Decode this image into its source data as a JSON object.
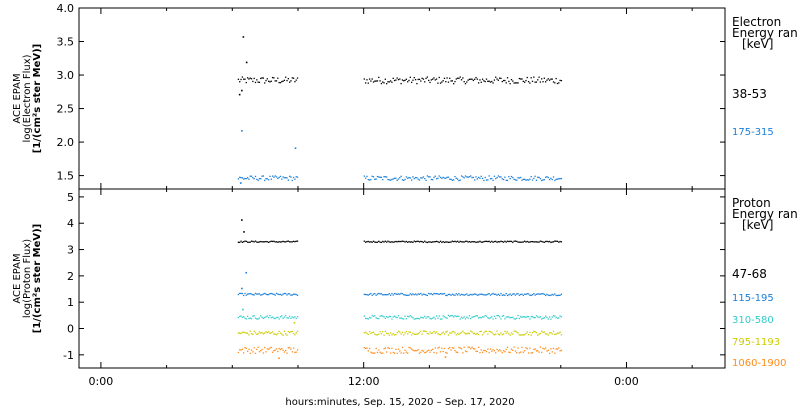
{
  "xlabel": "hours:minutes, Sep. 15, 2020 – Sep. 17, 2020",
  "chart_data": [
    {
      "type": "scatter",
      "ylabel_lines": [
        "ACE EPAM",
        "log(Electron Flux)",
        "[1/(cm²s ster MeV)]"
      ],
      "ylim": [
        1.3,
        4.0
      ],
      "yticks": [
        "1.5",
        "2.0",
        "2.5",
        "3.0",
        "3.5",
        "4.0"
      ],
      "legend": {
        "title_lines": [
          "Electron",
          "Energy ran",
          "[keV]"
        ],
        "placement": "right"
      },
      "series": [
        {
          "name": "38-53",
          "color": "#000000",
          "level": 2.93,
          "noise": 0.05,
          "extra": [
            [
              6.3,
              2.72
            ],
            [
              6.4,
              2.78
            ],
            [
              6.47,
              3.58
            ],
            [
              6.62,
              3.2
            ]
          ]
        },
        {
          "name": "175-315",
          "color": "#1a7fd8",
          "level": 1.47,
          "noise": 0.035,
          "extra": [
            [
              6.4,
              2.18
            ],
            [
              8.85,
              1.92
            ],
            [
              6.35,
              1.4
            ]
          ]
        }
      ]
    },
    {
      "type": "scatter",
      "ylabel_lines": [
        "ACE EPAM",
        "log(Proton Flux)",
        "[1/(cm²s ster MeV)]"
      ],
      "ylim": [
        -1.5,
        5.3
      ],
      "yticks": [
        "-1",
        "0",
        "1",
        "2",
        "3",
        "4",
        "5"
      ],
      "legend": {
        "title_lines": [
          "Proton",
          "Energy ran",
          "[keV]"
        ],
        "placement": "right"
      },
      "series": [
        {
          "name": "47-68",
          "color": "#000000",
          "level": 3.32,
          "noise": 0.025,
          "extra": [
            [
              6.4,
              4.15
            ],
            [
              6.5,
              3.7
            ]
          ]
        },
        {
          "name": "115-195",
          "color": "#1a7fd8",
          "level": 1.32,
          "noise": 0.04,
          "extra": [
            [
              6.6,
              2.15
            ],
            [
              6.4,
              1.55
            ]
          ]
        },
        {
          "name": "310-580",
          "color": "#33cccc",
          "level": 0.45,
          "noise": 0.07,
          "extra": [
            [
              6.45,
              0.75
            ]
          ]
        },
        {
          "name": "795-1193",
          "color": "#cccc00",
          "level": -0.15,
          "noise": 0.08,
          "extra": [
            [
              8.8,
              0.25
            ]
          ]
        },
        {
          "name": "1060-1900",
          "color": "#ff8c1a",
          "level": -0.8,
          "noise": 0.12,
          "extra": [
            [
              8.1,
              -1.1
            ],
            [
              15.7,
              -1.05
            ]
          ]
        }
      ]
    }
  ],
  "x_axis": {
    "xlim": [
      -1.0,
      28.5
    ],
    "major_ticks": [
      0,
      12,
      24
    ],
    "tick_labels": [
      "0:00",
      "12:00",
      "0:00"
    ],
    "data_segments": [
      [
        6.25,
        9.0
      ],
      [
        12.0,
        21.0
      ]
    ]
  }
}
